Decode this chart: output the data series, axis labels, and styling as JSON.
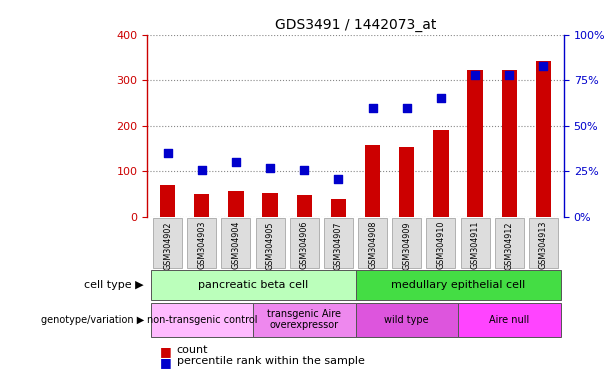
{
  "title": "GDS3491 / 1442073_at",
  "samples": [
    "GSM304902",
    "GSM304903",
    "GSM304904",
    "GSM304905",
    "GSM304906",
    "GSM304907",
    "GSM304908",
    "GSM304909",
    "GSM304910",
    "GSM304911",
    "GSM304912",
    "GSM304913"
  ],
  "counts": [
    70,
    50,
    57,
    52,
    48,
    40,
    157,
    153,
    190,
    323,
    323,
    343
  ],
  "percentiles": [
    35,
    26,
    30,
    27,
    26,
    21,
    60,
    60,
    65,
    78,
    78,
    83
  ],
  "count_color": "#cc0000",
  "percentile_color": "#0000cc",
  "left_ylim": [
    0,
    400
  ],
  "left_yticks": [
    0,
    100,
    200,
    300,
    400
  ],
  "right_ylim": [
    0,
    100
  ],
  "right_yticks": [
    0,
    25,
    50,
    75,
    100
  ],
  "right_yticklabels": [
    "0%",
    "25%",
    "50%",
    "75%",
    "100%"
  ],
  "cell_type_groups": [
    {
      "label": "pancreatic beta cell",
      "start": 0,
      "end": 5,
      "color": "#bbffbb"
    },
    {
      "label": "medullary epithelial cell",
      "start": 6,
      "end": 11,
      "color": "#44dd44"
    }
  ],
  "genotype_groups": [
    {
      "label": "non-transgenic control",
      "start": 0,
      "end": 2,
      "color": "#ffbbff"
    },
    {
      "label": "transgenic Aire\noverexpressor",
      "start": 3,
      "end": 5,
      "color": "#ee88ee"
    },
    {
      "label": "wild type",
      "start": 6,
      "end": 8,
      "color": "#dd55dd"
    },
    {
      "label": "Aire null",
      "start": 9,
      "end": 11,
      "color": "#ff44ff"
    }
  ],
  "bar_width": 0.45,
  "dot_size": 40,
  "bg_color": "#ffffff",
  "grid_color": "#888888",
  "tick_label_color_left": "#cc0000",
  "tick_label_color_right": "#0000cc",
  "xtick_bg": "#dddddd",
  "cell_type_label": "cell type",
  "genotype_label": "genotype/variation",
  "legend_count_label": "count",
  "legend_pct_label": "percentile rank within the sample"
}
